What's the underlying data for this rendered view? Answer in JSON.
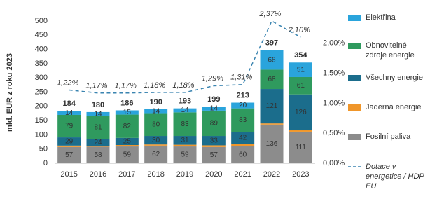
{
  "chart_data": {
    "type": "stacked-bar-line",
    "y_label": "mld. EUR z roku 2023",
    "categories": [
      "2015",
      "2016",
      "2017",
      "2018",
      "2019",
      "2020",
      "2021",
      "2022",
      "2023"
    ],
    "series": [
      {
        "name": "Fosilní paliva",
        "color": "#8c8c8c",
        "values": [
          57,
          58,
          59,
          62,
          59,
          57,
          60,
          136,
          111
        ]
      },
      {
        "name": "Jaderná energie",
        "color": "#f0962a",
        "values": [
          5,
          3,
          5,
          4,
          6,
          6,
          8,
          4,
          5
        ],
        "value_labels": [
          null,
          null,
          null,
          null,
          null,
          null,
          null,
          null,
          null
        ]
      },
      {
        "name": "Všechny energie",
        "color": "#1b6d8c",
        "values": [
          29,
          24,
          25,
          30,
          31,
          33,
          42,
          121,
          126
        ]
      },
      {
        "name": "Obnovitelné zdroje energie",
        "color": "#2f9a5e",
        "values": [
          79,
          81,
          82,
          80,
          83,
          89,
          83,
          68,
          61
        ]
      },
      {
        "name": "Elektřina",
        "color": "#2aa4dc",
        "values": [
          14,
          14,
          15,
          14,
          14,
          14,
          20,
          68,
          51
        ]
      }
    ],
    "totals": [
      184,
      180,
      186,
      190,
      193,
      199,
      213,
      397,
      354
    ],
    "line": {
      "name": "Dotace v energetice / HDP EU",
      "color": "#3a84b0",
      "axis": "y2",
      "values": [
        1.22,
        1.17,
        1.17,
        1.18,
        1.18,
        1.29,
        1.31,
        2.37,
        2.1
      ],
      "value_labels": [
        "1,22%",
        "1,17%",
        "1,17%",
        "1,18%",
        "1,18%",
        "1,29%",
        "1,31%",
        "2,37%",
        "2,10%"
      ]
    },
    "ylim": [
      0,
      500
    ],
    "yticks": [
      0,
      50,
      100,
      150,
      200,
      250,
      300,
      350,
      400,
      450,
      500
    ],
    "y2lim": [
      0,
      2.37
    ],
    "y2ticks": [
      {
        "value": 0,
        "label": "0,00%"
      },
      {
        "value": 0.5,
        "label": "0,50%"
      },
      {
        "value": 1,
        "label": "1,00%"
      },
      {
        "value": 1.5,
        "label": "1,50%"
      },
      {
        "value": 2,
        "label": "2,00%"
      }
    ]
  }
}
